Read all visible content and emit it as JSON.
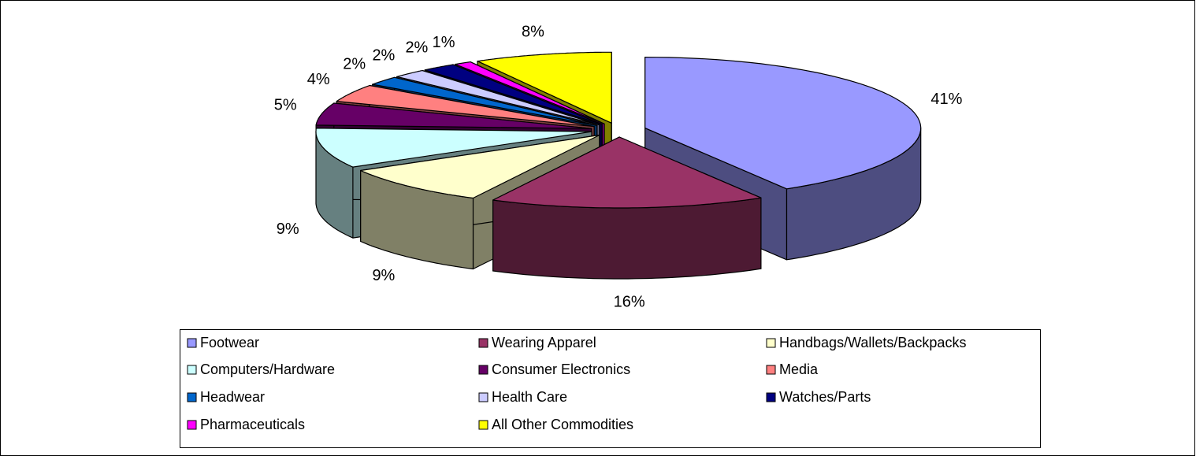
{
  "chart_data": {
    "type": "pie3d",
    "categories": [
      "Footwear",
      "Wearing Apparel",
      "Handbags/Wallets/Backpacks",
      "Computers/Hardware",
      "Consumer Electronics",
      "Media",
      "Headwear",
      "Health Care",
      "Watches/Parts",
      "Pharmaceuticals",
      "All Other Commodities"
    ],
    "values": [
      41,
      16,
      9,
      9,
      5,
      4,
      2,
      2,
      2,
      1,
      8
    ],
    "value_labels": [
      "41%",
      "16%",
      "9%",
      "9%",
      "5%",
      "4%",
      "2%",
      "2%",
      "2%",
      "1%",
      "8%"
    ],
    "colors": [
      "#9999ff",
      "#993366",
      "#ffffcc",
      "#ccffff",
      "#660066",
      "#ff8080",
      "#0066cc",
      "#ccccff",
      "#000080",
      "#ff00ff",
      "#ffff00"
    ],
    "legend": "bottom"
  }
}
